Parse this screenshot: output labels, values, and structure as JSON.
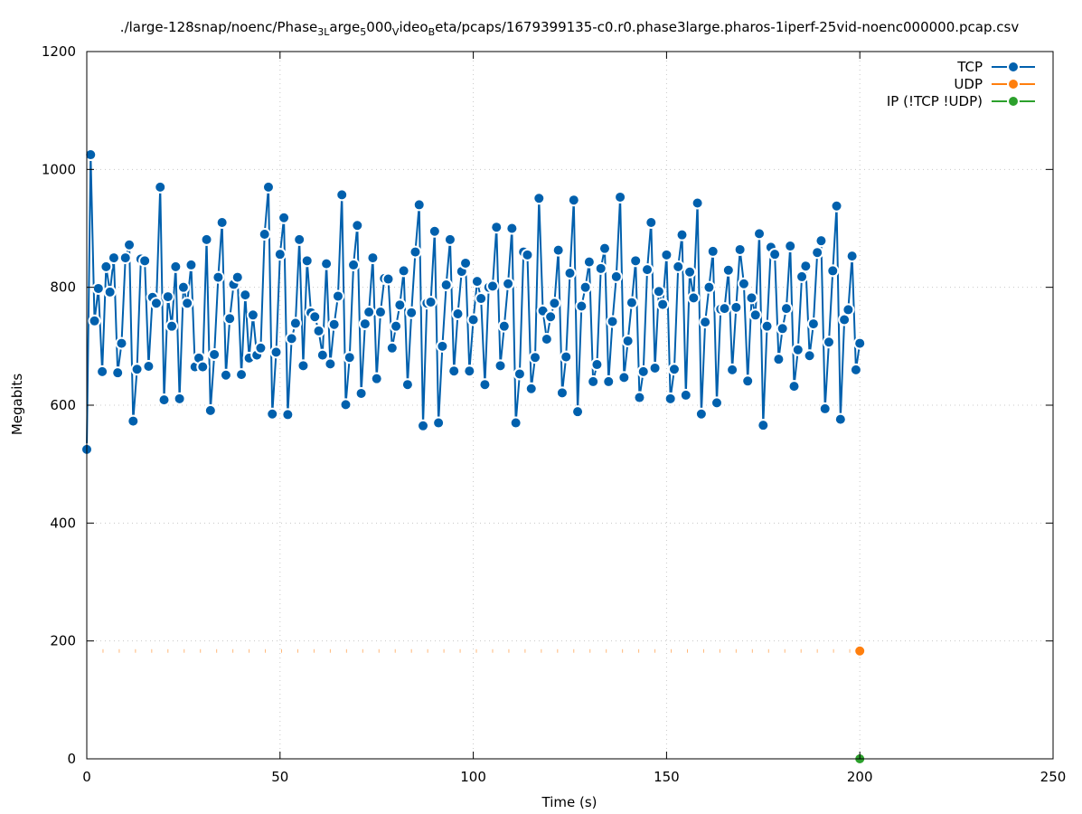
{
  "chart_data": {
    "type": "line",
    "title": "./large-128snap/noenc/Phase",
    "title_parts": [
      {
        "text": "./large-128snap/noenc/Phase",
        "shift": "none"
      },
      {
        "text": "3L",
        "shift": "sub"
      },
      {
        "text": "arge",
        "shift": "none"
      },
      {
        "text": "5",
        "shift": "sub"
      },
      {
        "text": "000",
        "shift": "none"
      },
      {
        "text": "V",
        "shift": "sub"
      },
      {
        "text": "ideo",
        "shift": "none"
      },
      {
        "text": "B",
        "shift": "sub"
      },
      {
        "text": "eta/pcaps/1679399135-c0.r0.phase3large.pharos-1iperf-25vid-noenc000000.pcap.csv",
        "shift": "none"
      }
    ],
    "xlabel": "Time (s)",
    "ylabel": "Megabits",
    "xlim": [
      0,
      250
    ],
    "ylim": [
      0,
      1200
    ],
    "xticks": [
      0,
      50,
      100,
      150,
      200,
      250
    ],
    "yticks": [
      0,
      200,
      400,
      600,
      800,
      1000,
      1200
    ],
    "grid": true,
    "legend_placement": "top-right",
    "series": [
      {
        "name": "TCP",
        "color": "#0060ad",
        "x": [
          0,
          1,
          2,
          3,
          4,
          5,
          6,
          7,
          8,
          9,
          10,
          11,
          12,
          13,
          14,
          15,
          16,
          17,
          18,
          19,
          20,
          21,
          22,
          23,
          24,
          25,
          26,
          27,
          28,
          29,
          30,
          31,
          32,
          33,
          34,
          35,
          36,
          37,
          38,
          39,
          40,
          41,
          42,
          43,
          44,
          45,
          46,
          47,
          48,
          49,
          50,
          51,
          52,
          53,
          54,
          55,
          56,
          57,
          58,
          59,
          60,
          61,
          62,
          63,
          64,
          65,
          66,
          67,
          68,
          69,
          70,
          71,
          72,
          73,
          74,
          75,
          76,
          77,
          78,
          79,
          80,
          81,
          82,
          83,
          84,
          85,
          86,
          87,
          88,
          89,
          90,
          91,
          92,
          93,
          94,
          95,
          96,
          97,
          98,
          99,
          100,
          101,
          102,
          103,
          104,
          105,
          106,
          107,
          108,
          109,
          110,
          111,
          112,
          113,
          114,
          115,
          116,
          117,
          118,
          119,
          120,
          121,
          122,
          123,
          124,
          125,
          126,
          127,
          128,
          129,
          130,
          131,
          132,
          133,
          134,
          135,
          136,
          137,
          138,
          139,
          140,
          141,
          142,
          143,
          144,
          145,
          146,
          147,
          148,
          149,
          150,
          151,
          152,
          153,
          154,
          155,
          156,
          157,
          158,
          159,
          160,
          161,
          162,
          163,
          164,
          165,
          166,
          167,
          168,
          169,
          170,
          171,
          172,
          173,
          174,
          175,
          176,
          177,
          178,
          179,
          180,
          181,
          182,
          183,
          184,
          185,
          186,
          187,
          188,
          189,
          190,
          191,
          192,
          193,
          194,
          195,
          196,
          197,
          198,
          199,
          200
        ],
        "values": [
          525,
          1025,
          743,
          798,
          657,
          835,
          792,
          850,
          655,
          705,
          850,
          872,
          573,
          661,
          848,
          845,
          666,
          783,
          773,
          970,
          609,
          784,
          734,
          835,
          611,
          800,
          773,
          838,
          665,
          680,
          665,
          881,
          591,
          686,
          817,
          910,
          651,
          747,
          805,
          817,
          652,
          787,
          680,
          753,
          685,
          697,
          890,
          970,
          585,
          690,
          856,
          918,
          584,
          713,
          739,
          881,
          667,
          845,
          757,
          750,
          726,
          685,
          840,
          670,
          737,
          785,
          957,
          601,
          681,
          838,
          905,
          620,
          738,
          758,
          850,
          645,
          758,
          815,
          814,
          697,
          734,
          770,
          828,
          635,
          757,
          860,
          940,
          565,
          773,
          775,
          895,
          570,
          700,
          804,
          881,
          658,
          755,
          827,
          841,
          658,
          745,
          810,
          781,
          635,
          800,
          802,
          902,
          667,
          734,
          806,
          900,
          570,
          653,
          860,
          855,
          628,
          681,
          951,
          760,
          712,
          750,
          773,
          863,
          621,
          682,
          824,
          948,
          589,
          768,
          800,
          843,
          640,
          669,
          832,
          866,
          640,
          742,
          818,
          953,
          647,
          709,
          774,
          845,
          613,
          657,
          830,
          910,
          663,
          793,
          771,
          855,
          611,
          661,
          835,
          889,
          617,
          826,
          782,
          943,
          585,
          741,
          800,
          861,
          604,
          763,
          764,
          829,
          660,
          766,
          864,
          806,
          641,
          782,
          753,
          891,
          566,
          734,
          868,
          856,
          678,
          730,
          764,
          870,
          632,
          694,
          818,
          836,
          684,
          738,
          859,
          879,
          594,
          707,
          828,
          938,
          576,
          745,
          762,
          853,
          660,
          705
        ]
      },
      {
        "name": "UDP",
        "color": "#ff7f0e",
        "x": [
          200
        ],
        "values": [
          183
        ]
      },
      {
        "name": "IP (!TCP  !UDP)",
        "color": "#2ca02c",
        "x": [
          200
        ],
        "values": [
          0
        ]
      }
    ]
  }
}
